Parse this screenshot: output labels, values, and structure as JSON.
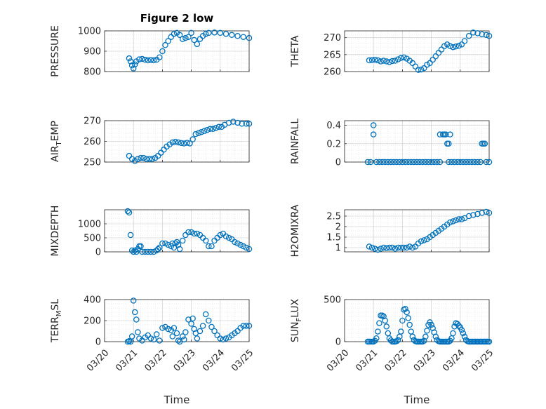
{
  "figure": {
    "title": "Figure 2 low",
    "xlabel": "Time",
    "marker_color": "#0072BD",
    "x_ticks": [
      "03/20",
      "03/21",
      "03/22",
      "03/23",
      "03/24",
      "03/25"
    ]
  },
  "chart_data": [
    {
      "type": "scatter",
      "ylabel": "PRESSURE",
      "ylabel_sub": "",
      "ylabel_tail": "",
      "ylim": [
        800,
        1000
      ],
      "yticks": [
        800,
        900,
        1000
      ],
      "ytick_labels": [
        "800",
        "900",
        "1000"
      ],
      "x": [
        20.85,
        20.9,
        20.95,
        21.0,
        21.05,
        21.1,
        21.2,
        21.3,
        21.4,
        21.5,
        21.6,
        21.7,
        21.8,
        21.9,
        22.0,
        22.1,
        22.2,
        22.3,
        22.4,
        22.5,
        22.6,
        22.7,
        22.8,
        22.9,
        23.0,
        23.1,
        23.2,
        23.3,
        23.4,
        23.5,
        23.6,
        23.8,
        24.0,
        24.2,
        24.4,
        24.6,
        24.8,
        25.0
      ],
      "y": [
        865,
        850,
        830,
        815,
        835,
        850,
        860,
        862,
        858,
        855,
        857,
        855,
        858,
        870,
        900,
        930,
        950,
        970,
        985,
        990,
        980,
        960,
        965,
        970,
        990,
        955,
        935,
        960,
        975,
        985,
        990,
        992,
        990,
        985,
        980,
        975,
        970,
        965
      ]
    },
    {
      "type": "scatter",
      "ylabel": "THETA",
      "ylabel_sub": "",
      "ylabel_tail": "",
      "ylim": [
        260,
        272
      ],
      "yticks": [
        260,
        265,
        270
      ],
      "ytick_labels": [
        "260",
        "265",
        "270"
      ],
      "x": [
        20.85,
        20.95,
        21.05,
        21.15,
        21.25,
        21.35,
        21.45,
        21.55,
        21.65,
        21.75,
        21.85,
        21.95,
        22.05,
        22.15,
        22.25,
        22.35,
        22.45,
        22.55,
        22.65,
        22.75,
        22.85,
        22.95,
        23.05,
        23.15,
        23.25,
        23.35,
        23.45,
        23.55,
        23.65,
        23.75,
        23.85,
        23.95,
        24.05,
        24.15,
        24.3,
        24.45,
        24.6,
        24.75,
        24.9,
        25.0
      ],
      "y": [
        263.3,
        263.4,
        263.5,
        263.3,
        263.0,
        263.2,
        263.0,
        262.8,
        263.1,
        263.2,
        263.6,
        264.0,
        264.2,
        263.8,
        263.2,
        262.5,
        261.5,
        260.5,
        260.6,
        261.0,
        262.0,
        262.5,
        263.5,
        264.5,
        265.5,
        266.5,
        267.5,
        268.0,
        267.5,
        267.2,
        267.4,
        267.6,
        268.0,
        269.0,
        270.5,
        271.5,
        271.3,
        271.0,
        270.8,
        270.5
      ]
    },
    {
      "type": "scatter",
      "ylabel": "AIR",
      "ylabel_sub": "T",
      "ylabel_tail": "EMP",
      "ylim": [
        250,
        270
      ],
      "yticks": [
        250,
        260,
        270
      ],
      "ytick_labels": [
        "250",
        "260",
        "270"
      ],
      "x": [
        20.85,
        20.95,
        21.05,
        21.15,
        21.25,
        21.35,
        21.45,
        21.55,
        21.65,
        21.75,
        21.85,
        21.95,
        22.05,
        22.15,
        22.25,
        22.35,
        22.45,
        22.55,
        22.65,
        22.75,
        22.85,
        22.95,
        23.05,
        23.15,
        23.25,
        23.35,
        23.45,
        23.55,
        23.65,
        23.75,
        23.85,
        23.95,
        24.05,
        24.15,
        24.3,
        24.45,
        24.6,
        24.75,
        24.9,
        25.0
      ],
      "y": [
        253,
        251.5,
        250.5,
        251.5,
        252,
        252,
        251.5,
        251.5,
        251.5,
        252,
        253,
        254.5,
        256,
        257.5,
        258.5,
        259.5,
        259.8,
        259.5,
        259.2,
        259.0,
        259.3,
        259.0,
        261,
        263.5,
        264,
        264.5,
        265,
        265.5,
        266,
        266,
        266.5,
        267,
        267,
        268,
        269,
        269.5,
        269,
        268.5,
        268.5,
        268.5
      ]
    },
    {
      "type": "scatter",
      "ylabel": "RAINFALL",
      "ylabel_sub": "",
      "ylabel_tail": "",
      "ylim": [
        0,
        0.45
      ],
      "yticks": [
        0,
        0.2,
        0.4
      ],
      "ytick_labels": [
        "0",
        "0.2",
        "0.4"
      ],
      "x": [
        20.8,
        20.9,
        21.0,
        21.0,
        21.1,
        21.2,
        21.3,
        21.4,
        21.5,
        21.6,
        21.7,
        21.8,
        21.9,
        22.0,
        22.1,
        22.2,
        22.3,
        22.4,
        22.5,
        22.6,
        22.7,
        22.8,
        22.9,
        23.0,
        23.1,
        23.2,
        23.3,
        23.3,
        23.4,
        23.45,
        23.5,
        23.55,
        23.6,
        23.6,
        23.65,
        23.7,
        23.8,
        23.9,
        24.0,
        24.1,
        24.2,
        24.3,
        24.4,
        24.5,
        24.6,
        24.7,
        24.75,
        24.8,
        24.85,
        24.9,
        25.0
      ],
      "y": [
        0,
        0,
        0.4,
        0.3,
        0,
        0,
        0,
        0,
        0,
        0,
        0,
        0,
        0,
        0,
        0,
        0,
        0,
        0,
        0,
        0,
        0,
        0,
        0,
        0,
        0,
        0,
        0.3,
        0,
        0.3,
        0.3,
        0.3,
        0.2,
        0.2,
        0,
        0.3,
        0,
        0,
        0,
        0,
        0,
        0,
        0,
        0,
        0,
        0,
        0,
        0.2,
        0.2,
        0.2,
        0,
        0
      ]
    },
    {
      "type": "scatter",
      "ylabel": "MIXDEPTH",
      "ylabel_sub": "",
      "ylabel_tail": "",
      "ylim": [
        0,
        1500
      ],
      "yticks": [
        0,
        500,
        1000
      ],
      "ytick_labels": [
        "0",
        "500",
        "1000"
      ],
      "x": [
        20.8,
        20.85,
        20.9,
        20.95,
        21.0,
        21.05,
        21.1,
        21.15,
        21.2,
        21.25,
        21.3,
        21.4,
        21.5,
        21.6,
        21.7,
        21.8,
        21.85,
        21.9,
        22.0,
        22.1,
        22.2,
        22.3,
        22.35,
        22.4,
        22.45,
        22.5,
        22.55,
        22.6,
        22.7,
        22.8,
        22.9,
        23.0,
        23.1,
        23.2,
        23.3,
        23.4,
        23.5,
        23.6,
        23.7,
        23.8,
        23.9,
        24.0,
        24.1,
        24.2,
        24.3,
        24.4,
        24.5,
        24.6,
        24.7,
        24.8,
        24.9,
        25.0
      ],
      "y": [
        1450,
        1400,
        600,
        50,
        0,
        50,
        0,
        100,
        200,
        200,
        0,
        0,
        0,
        0,
        0,
        50,
        100,
        150,
        300,
        300,
        250,
        200,
        300,
        150,
        300,
        350,
        250,
        100,
        400,
        600,
        700,
        700,
        650,
        650,
        600,
        500,
        400,
        200,
        200,
        400,
        500,
        600,
        650,
        550,
        500,
        450,
        350,
        300,
        250,
        200,
        150,
        100
      ]
    },
    {
      "type": "scatter",
      "ylabel": "H2OMIXRA",
      "ylabel_sub": "",
      "ylabel_tail": "",
      "ylim": [
        0.8,
        2.8
      ],
      "yticks": [
        1,
        1.5,
        2,
        2.5
      ],
      "ytick_labels": [
        "1",
        "1.5",
        "2",
        "2.5"
      ],
      "x": [
        20.85,
        20.95,
        21.05,
        21.15,
        21.25,
        21.35,
        21.45,
        21.55,
        21.65,
        21.75,
        21.85,
        21.95,
        22.05,
        22.15,
        22.25,
        22.35,
        22.45,
        22.55,
        22.65,
        22.75,
        22.85,
        22.95,
        23.05,
        23.15,
        23.25,
        23.35,
        23.45,
        23.55,
        23.65,
        23.75,
        23.85,
        23.95,
        24.05,
        24.15,
        24.3,
        24.45,
        24.6,
        24.75,
        24.9,
        25.0
      ],
      "y": [
        1.05,
        1.0,
        0.95,
        0.9,
        0.95,
        1.0,
        0.98,
        1.0,
        1.0,
        0.95,
        1.0,
        1.0,
        1.0,
        1.0,
        1.05,
        1.0,
        1.05,
        1.2,
        1.3,
        1.35,
        1.4,
        1.5,
        1.6,
        1.7,
        1.8,
        1.9,
        2.0,
        2.1,
        2.2,
        2.25,
        2.3,
        2.35,
        2.35,
        2.4,
        2.5,
        2.55,
        2.6,
        2.65,
        2.7,
        2.65
      ]
    },
    {
      "type": "scatter",
      "ylabel": "TERR",
      "ylabel_sub": "M",
      "ylabel_tail": "SL",
      "ylim": [
        0,
        400
      ],
      "yticks": [
        0,
        200,
        400
      ],
      "ytick_labels": [
        "0",
        "200",
        "400"
      ],
      "x": [
        20.8,
        20.85,
        20.9,
        20.95,
        21.0,
        21.05,
        21.1,
        21.15,
        21.2,
        21.3,
        21.4,
        21.5,
        21.6,
        21.7,
        21.8,
        21.9,
        22.0,
        22.1,
        22.2,
        22.3,
        22.35,
        22.4,
        22.5,
        22.55,
        22.6,
        22.7,
        22.75,
        22.8,
        22.9,
        23.0,
        23.05,
        23.1,
        23.15,
        23.2,
        23.3,
        23.4,
        23.5,
        23.6,
        23.7,
        23.8,
        23.9,
        24.0,
        24.1,
        24.2,
        24.3,
        24.4,
        24.5,
        24.6,
        24.7,
        24.8,
        24.9,
        25.0
      ],
      "y": [
        0,
        5,
        0,
        50,
        390,
        280,
        210,
        90,
        30,
        10,
        40,
        60,
        30,
        20,
        70,
        10,
        130,
        140,
        120,
        110,
        50,
        130,
        80,
        10,
        0,
        50,
        20,
        90,
        210,
        170,
        220,
        120,
        80,
        30,
        100,
        150,
        260,
        200,
        140,
        100,
        60,
        30,
        20,
        30,
        40,
        60,
        80,
        100,
        130,
        150,
        150,
        150
      ]
    },
    {
      "type": "scatter",
      "ylabel": "SUN",
      "ylabel_sub": "F",
      "ylabel_tail": "LUX",
      "ylim": [
        0,
        500
      ],
      "yticks": [
        0,
        500
      ],
      "ytick_labels": [
        "0",
        "500"
      ],
      "x": [
        20.8,
        20.85,
        20.9,
        20.95,
        21.0,
        21.05,
        21.1,
        21.15,
        21.2,
        21.25,
        21.3,
        21.35,
        21.4,
        21.45,
        21.5,
        21.55,
        21.6,
        21.65,
        21.7,
        21.75,
        21.8,
        21.85,
        21.9,
        21.95,
        22.0,
        22.05,
        22.1,
        22.15,
        22.2,
        22.25,
        22.3,
        22.35,
        22.4,
        22.45,
        22.5,
        22.55,
        22.6,
        22.65,
        22.7,
        22.75,
        22.8,
        22.85,
        22.9,
        22.95,
        23.0,
        23.05,
        23.1,
        23.15,
        23.2,
        23.25,
        23.3,
        23.35,
        23.4,
        23.45,
        23.5,
        23.55,
        23.6,
        23.65,
        23.7,
        23.75,
        23.8,
        23.85,
        23.9,
        23.95,
        24.0,
        24.05,
        24.1,
        24.15,
        24.2,
        24.25,
        24.3,
        24.35,
        24.4,
        24.45,
        24.5,
        24.55,
        24.6,
        24.65,
        24.7,
        24.75,
        24.8,
        24.85,
        24.9,
        24.95,
        25.0
      ],
      "y": [
        0,
        0,
        0,
        0,
        0,
        10,
        40,
        120,
        220,
        310,
        310,
        300,
        250,
        180,
        100,
        40,
        15,
        0,
        0,
        0,
        5,
        20,
        60,
        120,
        250,
        380,
        390,
        350,
        280,
        200,
        120,
        60,
        20,
        5,
        0,
        0,
        0,
        0,
        0,
        10,
        60,
        130,
        200,
        230,
        200,
        160,
        110,
        60,
        20,
        5,
        0,
        0,
        0,
        0,
        0,
        0,
        0,
        10,
        40,
        100,
        180,
        220,
        210,
        190,
        170,
        140,
        100,
        60,
        20,
        5,
        0,
        0,
        0,
        0,
        0,
        0,
        0,
        0,
        0,
        0,
        0,
        0,
        0,
        0,
        0
      ]
    }
  ]
}
